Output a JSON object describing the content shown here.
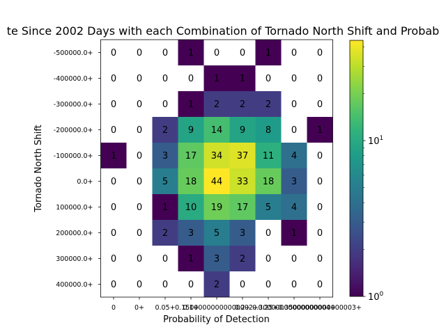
{
  "chart_data": {
    "type": "heatmap",
    "title": "te Since 2002 Days with each Combination of Tornado North Shift and Probab",
    "xlabel": "Probability of Detection",
    "ylabel": "Tornado North Shift",
    "x_categories": [
      "0",
      "0+",
      "0.05+",
      "0.1+",
      "0.15000000000000002+",
      "0.2+",
      "0.25+",
      "0.30000000000000004+",
      "0.35000000000000003+"
    ],
    "y_categories": [
      "-500000.0+",
      "-400000.0+",
      "-300000.0+",
      "-200000.0+",
      "-100000.0+",
      "0.0+",
      "100000.0+",
      "200000.0+",
      "300000.0+",
      "400000.0+"
    ],
    "values": [
      [
        0,
        0,
        0,
        1,
        0,
        0,
        1,
        0,
        0
      ],
      [
        0,
        0,
        0,
        0,
        1,
        1,
        0,
        0,
        0
      ],
      [
        0,
        0,
        0,
        1,
        2,
        2,
        2,
        0,
        0
      ],
      [
        0,
        0,
        2,
        9,
        14,
        9,
        8,
        0,
        1
      ],
      [
        1,
        0,
        3,
        17,
        34,
        37,
        11,
        4,
        0
      ],
      [
        0,
        0,
        5,
        18,
        44,
        33,
        18,
        3,
        0
      ],
      [
        0,
        0,
        1,
        10,
        19,
        17,
        5,
        4,
        0
      ],
      [
        0,
        0,
        2,
        3,
        5,
        3,
        0,
        1,
        0
      ],
      [
        0,
        0,
        0,
        1,
        3,
        2,
        0,
        0,
        0
      ],
      [
        0,
        0,
        0,
        0,
        2,
        0,
        0,
        0,
        0
      ]
    ],
    "color_scale": "log",
    "colormap": "viridis",
    "color_range": [
      1,
      44
    ],
    "colorbar_ticks": [
      {
        "value": 1,
        "base": "10",
        "exp": "0"
      },
      {
        "value": 10,
        "base": "10",
        "exp": "1"
      }
    ],
    "zero_color": "#ffffff",
    "grid": false,
    "legend": "colorbar-right"
  }
}
